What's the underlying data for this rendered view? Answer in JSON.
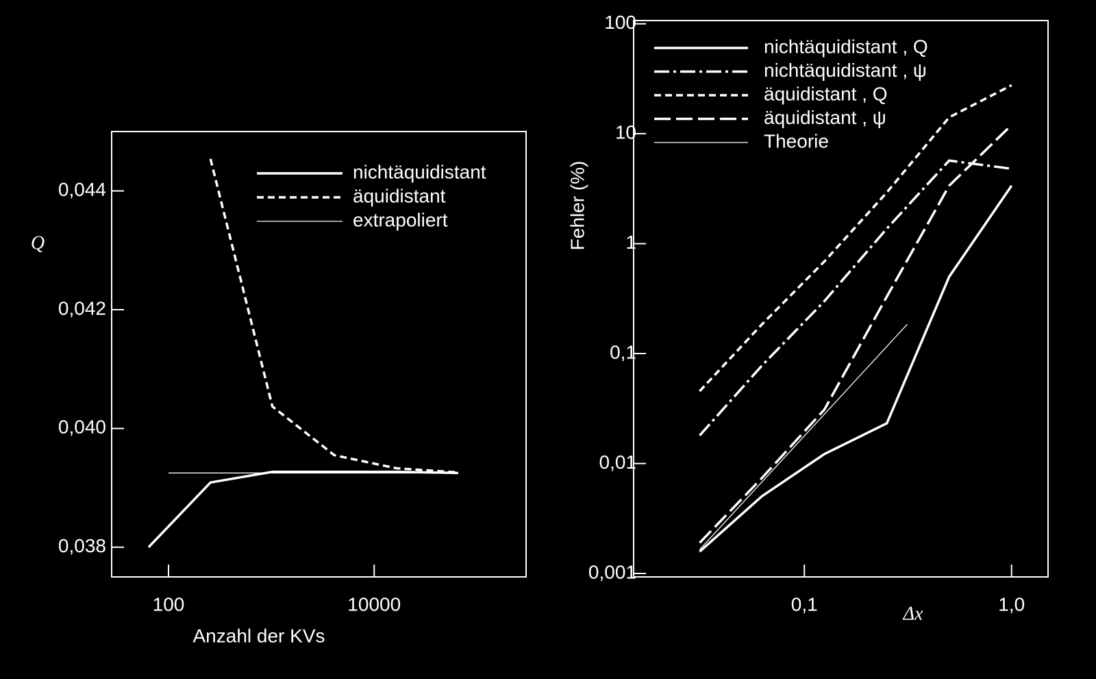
{
  "chart_data": [
    {
      "type": "line",
      "xlabel": "Anzahl der KVs",
      "ylabel": "Q",
      "xscale": "log",
      "legend": "upper right",
      "x": [
        64,
        256,
        1024,
        4096,
        16384,
        65536
      ],
      "xlim": [
        28,
        300000
      ],
      "xticks": [
        100,
        10000
      ],
      "ylim": [
        0.0375,
        0.045
      ],
      "yticks": [
        {
          "value": 0.038,
          "label": "0,038"
        },
        {
          "value": 0.04,
          "label": "0,040"
        },
        {
          "value": 0.042,
          "label": "0,042"
        },
        {
          "value": 0.044,
          "label": "0,044"
        }
      ],
      "series": [
        {
          "name": "nichtäquidistant",
          "color": "#ffffff",
          "dash": "solid",
          "width": "thick",
          "values": [
            0.038,
            0.03909,
            0.03927,
            0.03927,
            0.03927,
            0.03925
          ]
        },
        {
          "name": "äquidistant",
          "color": "#ffffff",
          "dash": "dashed",
          "width": "thick",
          "values": [
            null,
            0.04454,
            0.04037,
            0.03955,
            0.03933,
            0.03926
          ]
        },
        {
          "name": "extrapoliert",
          "color": "#ffffff",
          "dash": "solid",
          "width": "thin",
          "x": [
            100,
            65536
          ],
          "values": [
            0.03925,
            0.03925
          ]
        }
      ]
    },
    {
      "type": "line",
      "xlabel": "Δx",
      "ylabel": "Fehler (%)",
      "xscale": "log",
      "yscale": "log",
      "legend": "upper left",
      "x": [
        0.03125,
        0.0625,
        0.125,
        0.25,
        0.5,
        1.0
      ],
      "xlim": [
        0.015,
        1.5
      ],
      "xticks": [
        {
          "value": 0.1,
          "label": "0,1"
        },
        {
          "value": 1,
          "label": "1,0"
        }
      ],
      "ylim": [
        0.00093,
        107
      ],
      "yticks": [
        {
          "value": 0.001,
          "label": "0,001"
        },
        {
          "value": 0.01,
          "label": "0,01"
        },
        {
          "value": 0.1,
          "label": "0,1"
        },
        1,
        10,
        100
      ],
      "series": [
        {
          "name": "nichtäquidistant , Q",
          "color": "#ffffff",
          "dash": "solid",
          "width": "thick",
          "values": [
            0.00158,
            0.00505,
            0.0122,
            0.0232,
            0.5,
            3.37
          ]
        },
        {
          "name": "nichtäquidistant , ψ",
          "color": "#ffffff",
          "dash": "dashdot",
          "width": "thick",
          "values": [
            0.018,
            0.078,
            0.3,
            1.37,
            5.7,
            4.8
          ]
        },
        {
          "name": "äquidistant , Q",
          "color": "#ffffff",
          "dash": "dashed",
          "width": "thick",
          "values": [
            0.0455,
            0.185,
            0.69,
            2.92,
            14.1,
            27.6
          ]
        },
        {
          "name": "äquidistant , ψ",
          "color": "#ffffff",
          "dash": "longdash",
          "width": "thick",
          "values": [
            0.0019,
            0.0074,
            0.031,
            0.33,
            3.37,
            12.0
          ]
        },
        {
          "name": "Theorie",
          "color": "#ffffff",
          "dash": "solid",
          "width": "thin",
          "x": [
            0.03125,
            0.314
          ],
          "values": [
            0.00165,
            0.185
          ]
        }
      ]
    }
  ]
}
